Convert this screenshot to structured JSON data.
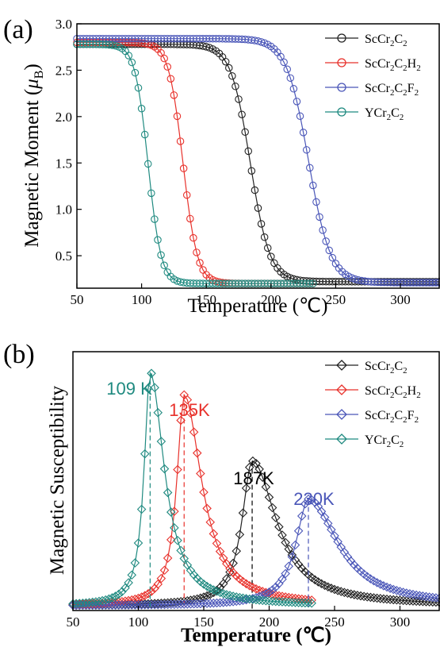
{
  "chart_data": [
    {
      "panel_label": "(a)",
      "type": "line",
      "xlabel": "Temperature (℃)",
      "ylabel": "Magnetic Moment (",
      "ylabel_mu": "μ",
      "ylabel_sub": "B",
      "ylabel_end": ")",
      "xlim": [
        50,
        330
      ],
      "ylim": [
        0.15,
        3.0
      ],
      "xticks": [
        50,
        100,
        150,
        200,
        250,
        300
      ],
      "yticks": [
        "0.5",
        "1.0",
        "1.5",
        "2.0",
        "2.5",
        "3.0"
      ],
      "legend_position": "top-right",
      "series": [
        {
          "name": "ScCr2C2",
          "legend": [
            "ScCr",
            "2",
            "C",
            "2",
            "",
            ""
          ],
          "color": "#222222",
          "xmax": 330,
          "params": {
            "max": 2.78,
            "min": 0.22,
            "tc": 184,
            "w": 7.5
          }
        },
        {
          "name": "ScCr2C2H2",
          "legend": [
            "ScCr",
            "2",
            "C",
            "2",
            "H",
            "2"
          ],
          "color": "#e8312b",
          "xmax": 233,
          "params": {
            "max": 2.8,
            "min": 0.2,
            "tc": 132,
            "w": 5.5
          }
        },
        {
          "name": "ScCr2C2F2",
          "legend": [
            "ScCr",
            "2",
            "C",
            "2",
            "F",
            "2"
          ],
          "color": "#4a56b8",
          "xmax": 330,
          "params": {
            "max": 2.84,
            "min": 0.21,
            "tc": 229,
            "w": 8.5
          }
        },
        {
          "name": "YCr2C2",
          "legend": [
            "YCr",
            "2",
            "C",
            "2",
            "",
            ""
          ],
          "color": "#1f8a80",
          "xmax": 233,
          "params": {
            "max": 2.78,
            "min": 0.2,
            "tc": 105,
            "w": 5.0
          }
        }
      ]
    },
    {
      "panel_label": "(b)",
      "type": "line",
      "xlabel": "Temperature (℃)",
      "ylabel": "Magnetic Susceptibility",
      "xlim": [
        50,
        330
      ],
      "xticks": [
        50,
        100,
        150,
        200,
        250,
        300
      ],
      "legend_position": "top-right",
      "series": [
        {
          "name": "ScCr2C2",
          "legend": [
            "ScCr",
            "2",
            "C",
            "2",
            "",
            ""
          ],
          "color": "#222222",
          "peak_label": "187K",
          "peak_T": 187,
          "peak_height": 0.57
        },
        {
          "name": "ScCr2C2H2",
          "legend": [
            "ScCr",
            "2",
            "C",
            "2",
            "H",
            "2"
          ],
          "color": "#e8312b",
          "peak_label": "135K",
          "peak_T": 135,
          "peak_height": 0.83
        },
        {
          "name": "ScCr2C2F2",
          "legend": [
            "ScCr",
            "2",
            "C",
            "2",
            "F",
            "2"
          ],
          "color": "#4a56b8",
          "peak_label": "230K",
          "peak_T": 230,
          "peak_height": 0.42
        },
        {
          "name": "YCr2C2",
          "legend": [
            "YCr",
            "2",
            "C",
            "2",
            "",
            ""
          ],
          "color": "#1f8a80",
          "peak_label": "109 K",
          "peak_T": 109,
          "peak_height": 0.92
        }
      ]
    }
  ]
}
